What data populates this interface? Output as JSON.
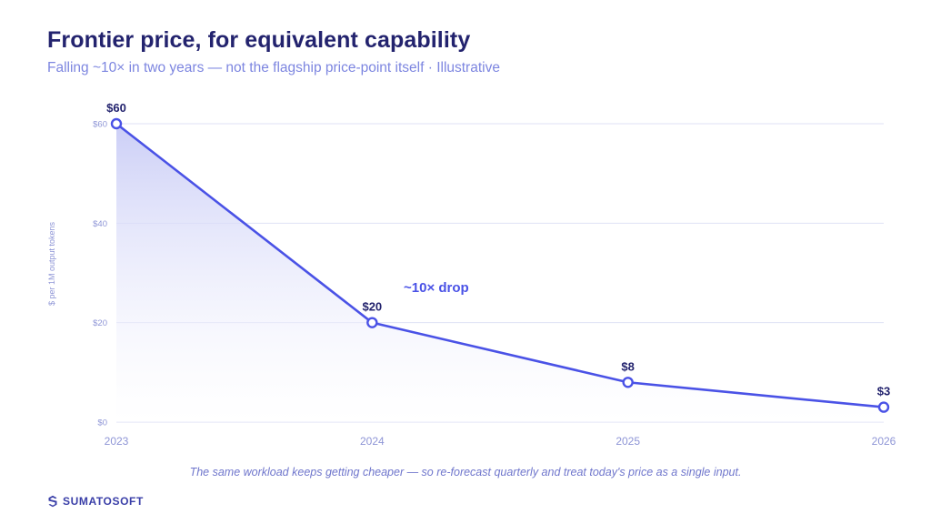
{
  "page": {
    "title": "Frontier price, for equivalent capability",
    "subtitle": "Falling ~10× in two years — not the flagship price-point itself · Illustrative",
    "footnote": "The same workload keeps getting cheaper — so re-forecast quarterly and treat today's price as a single input.",
    "brand": "SUMATOSOFT",
    "brand_icon": "sumatosoft-logo-icon"
  },
  "chart_data": {
    "type": "area",
    "x": [
      "2023",
      "2024",
      "2025",
      "2026"
    ],
    "series": [
      {
        "values": [
          60,
          20,
          8,
          3
        ]
      }
    ],
    "data_labels": [
      "$60",
      "$20",
      "$8",
      "$3"
    ],
    "ylabel": "$ per 1M output tokens",
    "ylim": [
      0,
      60
    ],
    "yticks": [
      0,
      20,
      40,
      60
    ],
    "ytick_labels": [
      "$0",
      "$20",
      "$40",
      "$60"
    ],
    "annotation": {
      "text": "~10× drop"
    },
    "grid": true,
    "colors": {
      "line": "#4a52e6",
      "fill_top": "#c9ccf6",
      "grid": "#dfe2f5",
      "title": "#23236e",
      "axis_text": "#8e95d6"
    }
  }
}
